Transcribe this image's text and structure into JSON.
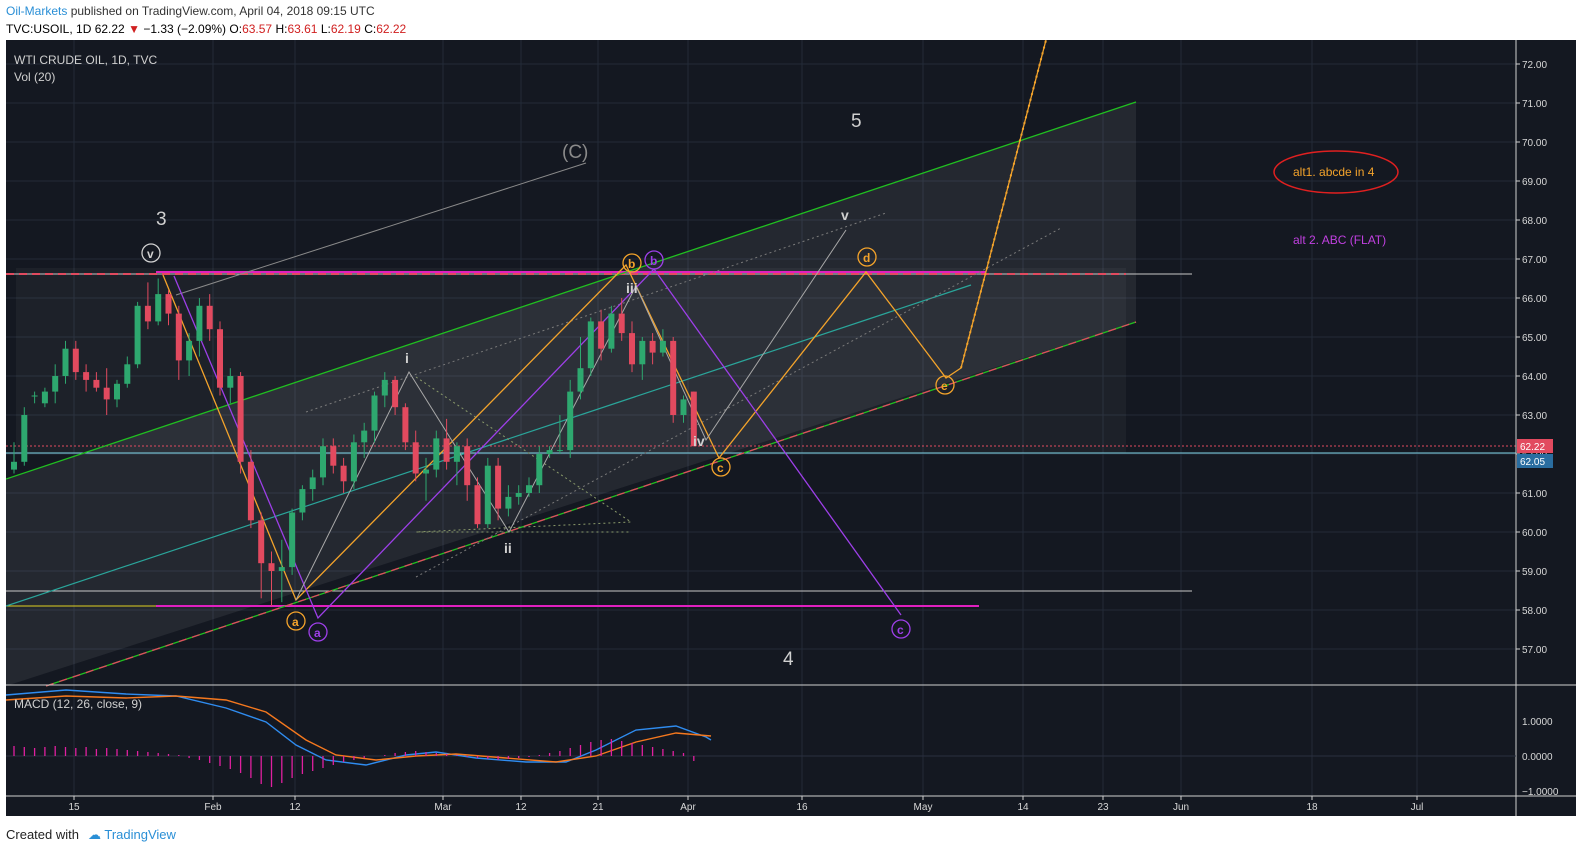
{
  "header": {
    "author": "Oil-Markets",
    "published": "published on TradingView.com, April 04, 2018 09:15 UTC",
    "symbol_prefix": "TVC:USOIL, 1D",
    "last": "62.22",
    "change": "−1.33 (−2.09%)",
    "o_label": "O:",
    "o_value": "63.57",
    "h_label": "H:",
    "h_value": "63.61",
    "l_label": "L:",
    "l_value": "62.19",
    "c_label": "C:",
    "c_value": "62.22"
  },
  "chart": {
    "instrument_title": "WTI CRUDE OIL, 1D, TVC",
    "volume_label": "Vol (20)",
    "macd_label": "MACD (12, 26, close, 9)",
    "price_axis_labels": [
      "72.00",
      "71.00",
      "70.00",
      "69.00",
      "68.00",
      "67.00",
      "66.00",
      "65.00",
      "64.00",
      "63.00",
      "62.00",
      "61.00",
      "60.00",
      "59.00",
      "58.00",
      "57.00"
    ],
    "price_tag_last": "62.22",
    "price_tag_blue": "62.05",
    "macd_axis_labels": [
      "1.0000",
      "0.0000",
      "−1.0000"
    ],
    "time_axis_labels": [
      "15",
      "Feb",
      "12",
      "Mar",
      "12",
      "21",
      "Apr",
      "16",
      "May",
      "14",
      "23",
      "Jun",
      "18",
      "Jul"
    ],
    "annotations": {
      "alt1": "alt1. abcde in 4",
      "alt2": "alt 2. ABC (FLAT)",
      "wave_3": "3",
      "wave_4": "4",
      "wave_5": "5",
      "wave_C": "(C)",
      "wave_i": "i",
      "wave_ii": "ii",
      "wave_iii": "iii",
      "wave_iv": "iv",
      "wave_v_small": "v",
      "circle_v": "v",
      "orange_a": "a",
      "orange_b": "b",
      "orange_c": "c",
      "orange_d": "d",
      "orange_e": "e",
      "purple_a": "a",
      "purple_b": "b",
      "purple_c": "c"
    },
    "colors": {
      "background": "#141821",
      "up_candle": "#2ea86f",
      "down_candle": "#e24a5f",
      "orange": "#f3a32b",
      "purple": "#9d3fe8",
      "green": "#20c020",
      "teal": "#2aa59a",
      "magenta": "#e020c0",
      "red_last": "#e24a5f",
      "macd_line": "#2f8cf0",
      "signal_line": "#f5781e"
    }
  },
  "chart_data": {
    "type": "candlestick",
    "title": "WTI CRUDE OIL, 1D, TVC",
    "ylim": [
      56.0,
      72.5
    ],
    "last_price": 62.22,
    "ohlc": [
      {
        "o": 61.6,
        "h": 62.3,
        "l": 61.5,
        "c": 61.8
      },
      {
        "o": 61.8,
        "h": 63.2,
        "l": 61.7,
        "c": 63.0
      },
      {
        "o": 63.5,
        "h": 63.6,
        "l": 63.3,
        "c": 63.5
      },
      {
        "o": 63.3,
        "h": 63.7,
        "l": 63.2,
        "c": 63.6
      },
      {
        "o": 63.6,
        "h": 64.3,
        "l": 63.3,
        "c": 64.0
      },
      {
        "o": 64.0,
        "h": 64.9,
        "l": 63.8,
        "c": 64.7
      },
      {
        "o": 64.7,
        "h": 64.9,
        "l": 63.9,
        "c": 64.1
      },
      {
        "o": 64.1,
        "h": 64.3,
        "l": 63.6,
        "c": 63.9
      },
      {
        "o": 63.9,
        "h": 64.1,
        "l": 63.6,
        "c": 63.7
      },
      {
        "o": 63.7,
        "h": 64.2,
        "l": 63.0,
        "c": 63.4
      },
      {
        "o": 63.4,
        "h": 63.9,
        "l": 63.2,
        "c": 63.8
      },
      {
        "o": 63.8,
        "h": 64.5,
        "l": 63.7,
        "c": 64.3
      },
      {
        "o": 64.3,
        "h": 65.9,
        "l": 64.2,
        "c": 65.8
      },
      {
        "o": 65.8,
        "h": 66.4,
        "l": 65.2,
        "c": 65.4
      },
      {
        "o": 65.4,
        "h": 66.5,
        "l": 65.3,
        "c": 66.1
      },
      {
        "o": 66.1,
        "h": 66.2,
        "l": 65.3,
        "c": 65.6
      },
      {
        "o": 65.6,
        "h": 65.8,
        "l": 63.9,
        "c": 64.4
      },
      {
        "o": 64.4,
        "h": 65.1,
        "l": 64.0,
        "c": 64.9
      },
      {
        "o": 64.9,
        "h": 66.0,
        "l": 64.5,
        "c": 65.8
      },
      {
        "o": 65.8,
        "h": 66.1,
        "l": 64.9,
        "c": 65.2
      },
      {
        "o": 65.2,
        "h": 65.4,
        "l": 63.5,
        "c": 63.7
      },
      {
        "o": 63.7,
        "h": 64.2,
        "l": 63.3,
        "c": 64.0
      },
      {
        "o": 64.0,
        "h": 64.1,
        "l": 61.5,
        "c": 61.8
      },
      {
        "o": 61.8,
        "h": 62.1,
        "l": 60.1,
        "c": 60.3
      },
      {
        "o": 60.3,
        "h": 60.5,
        "l": 58.3,
        "c": 59.2
      },
      {
        "o": 59.2,
        "h": 59.5,
        "l": 58.1,
        "c": 59.0
      },
      {
        "o": 59.0,
        "h": 59.8,
        "l": 58.2,
        "c": 59.1
      },
      {
        "o": 59.1,
        "h": 60.6,
        "l": 58.9,
        "c": 60.5
      },
      {
        "o": 60.5,
        "h": 61.2,
        "l": 60.3,
        "c": 61.1
      },
      {
        "o": 61.1,
        "h": 61.6,
        "l": 60.8,
        "c": 61.4
      },
      {
        "o": 61.4,
        "h": 62.4,
        "l": 61.2,
        "c": 62.2
      },
      {
        "o": 62.2,
        "h": 62.4,
        "l": 61.5,
        "c": 61.7
      },
      {
        "o": 61.7,
        "h": 61.9,
        "l": 61.0,
        "c": 61.3
      },
      {
        "o": 61.3,
        "h": 62.5,
        "l": 61.1,
        "c": 62.3
      },
      {
        "o": 62.3,
        "h": 62.8,
        "l": 61.9,
        "c": 62.6
      },
      {
        "o": 62.6,
        "h": 63.6,
        "l": 62.3,
        "c": 63.5
      },
      {
        "o": 63.5,
        "h": 64.1,
        "l": 63.2,
        "c": 63.9
      },
      {
        "o": 63.9,
        "h": 64.0,
        "l": 63.0,
        "c": 63.2
      },
      {
        "o": 63.2,
        "h": 63.3,
        "l": 62.1,
        "c": 62.3
      },
      {
        "o": 62.3,
        "h": 62.6,
        "l": 61.3,
        "c": 61.5
      },
      {
        "o": 61.5,
        "h": 61.9,
        "l": 60.8,
        "c": 61.6
      },
      {
        "o": 61.6,
        "h": 62.6,
        "l": 61.4,
        "c": 62.4
      },
      {
        "o": 62.4,
        "h": 62.9,
        "l": 61.6,
        "c": 61.8
      },
      {
        "o": 61.8,
        "h": 62.3,
        "l": 61.2,
        "c": 62.2
      },
      {
        "o": 62.2,
        "h": 62.4,
        "l": 60.8,
        "c": 61.2
      },
      {
        "o": 61.2,
        "h": 61.4,
        "l": 60.1,
        "c": 60.2
      },
      {
        "o": 60.2,
        "h": 61.9,
        "l": 60.1,
        "c": 61.7
      },
      {
        "o": 61.7,
        "h": 61.9,
        "l": 60.3,
        "c": 60.6
      },
      {
        "o": 60.6,
        "h": 61.2,
        "l": 60.4,
        "c": 60.9
      },
      {
        "o": 60.9,
        "h": 61.2,
        "l": 60.7,
        "c": 61.0
      },
      {
        "o": 61.0,
        "h": 61.4,
        "l": 60.9,
        "c": 61.2
      },
      {
        "o": 61.2,
        "h": 62.2,
        "l": 61.0,
        "c": 62.0
      },
      {
        "o": 62.0,
        "h": 62.2,
        "l": 61.9,
        "c": 62.1
      },
      {
        "o": 62.1,
        "h": 63.0,
        "l": 62.0,
        "c": 62.1
      },
      {
        "o": 62.1,
        "h": 63.9,
        "l": 61.9,
        "c": 63.6
      },
      {
        "o": 63.6,
        "h": 65.0,
        "l": 63.4,
        "c": 64.2
      },
      {
        "o": 64.2,
        "h": 65.5,
        "l": 64.0,
        "c": 65.4
      },
      {
        "o": 65.4,
        "h": 65.7,
        "l": 64.4,
        "c": 64.7
      },
      {
        "o": 64.7,
        "h": 65.8,
        "l": 64.6,
        "c": 65.6
      },
      {
        "o": 65.6,
        "h": 66.0,
        "l": 64.9,
        "c": 65.1
      },
      {
        "o": 65.1,
        "h": 65.4,
        "l": 64.1,
        "c": 64.3
      },
      {
        "o": 64.3,
        "h": 65.0,
        "l": 63.9,
        "c": 64.9
      },
      {
        "o": 64.9,
        "h": 65.1,
        "l": 64.3,
        "c": 64.6
      },
      {
        "o": 64.6,
        "h": 65.2,
        "l": 64.5,
        "c": 64.9
      },
      {
        "o": 64.9,
        "h": 65.0,
        "l": 62.8,
        "c": 63.0
      },
      {
        "o": 63.0,
        "h": 63.5,
        "l": 62.8,
        "c": 63.4
      },
      {
        "o": 63.6,
        "h": 63.6,
        "l": 62.2,
        "c": 62.2
      }
    ],
    "macd": {
      "macd_label": "MACD (12, 26, close, 9)",
      "ylim": [
        -1.0,
        1.5
      ]
    },
    "horizontal_levels": [
      66.6,
      62.22,
      62.05,
      58.55,
      58.1
    ],
    "x_tick_labels": [
      "15",
      "Feb",
      "12",
      "Mar",
      "12",
      "21",
      "Apr",
      "16",
      "May",
      "14",
      "23",
      "Jun",
      "18",
      "Jul"
    ],
    "y_tick_labels": [
      "72.00",
      "71.00",
      "70.00",
      "69.00",
      "68.00",
      "67.00",
      "66.00",
      "65.00",
      "64.00",
      "63.00",
      "62.00",
      "61.00",
      "60.00",
      "59.00",
      "58.00",
      "57.00"
    ]
  }
}
